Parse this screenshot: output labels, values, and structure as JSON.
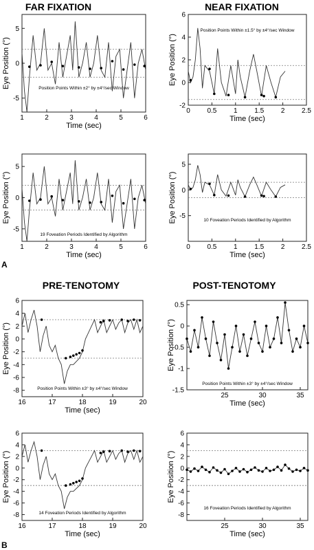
{
  "section_labels": {
    "a": "A",
    "b": "B"
  },
  "headers": {
    "far": "FAR FIXATION",
    "near": "NEAR FIXATION",
    "pre": "PRE-TENOTOMY",
    "post": "POST-TENOTOMY"
  },
  "chart_data": [
    {
      "id": "far_points",
      "type": "line",
      "title": "FAR FIXATION",
      "xlabel": "Time (sec)",
      "ylabel": "Eye Position (°)",
      "xlim": [
        1,
        6
      ],
      "ylim": [
        -7,
        7
      ],
      "xticks": [
        1,
        2,
        3,
        4,
        5,
        6
      ],
      "yticks": [
        -5,
        0,
        5
      ],
      "annotation": "Position Points Within ±2° by ±4°/sec Window",
      "threshold_lines": [
        2,
        -2
      ],
      "series": [
        {
          "x": [
            1.0,
            1.1,
            1.2,
            1.3,
            1.45,
            1.6,
            1.75,
            1.9,
            2.05,
            2.2,
            2.35,
            2.5,
            2.65,
            2.8,
            2.95,
            3.05,
            3.15,
            3.3,
            3.45,
            3.6,
            3.75,
            3.9,
            4.05,
            4.2,
            4.35,
            4.5,
            4.65,
            4.8,
            4.95,
            5.1,
            5.25,
            5.4,
            5.55,
            5.7,
            5.85,
            6.0
          ],
          "y": [
            1.5,
            -4,
            -7,
            -2,
            4,
            -1,
            0,
            5,
            -1,
            0,
            -3,
            3,
            -2,
            1,
            4,
            -1,
            6,
            -2,
            0,
            3,
            -2,
            0,
            4,
            -1,
            -2,
            3,
            -4,
            1,
            2,
            -5,
            -1,
            3,
            -5,
            0,
            2,
            -1
          ]
        }
      ],
      "highlight": {
        "x": [
          1.3,
          1.75,
          2.2,
          2.65,
          3.3,
          3.75,
          4.2,
          4.65,
          5.1,
          5.55,
          5.95
        ],
        "y": [
          -0.5,
          -0.3,
          0.2,
          -0.4,
          -0.6,
          -0.8,
          -0.7,
          0.3,
          -0.9,
          -0.2,
          -0.4
        ]
      }
    },
    {
      "id": "near_points",
      "type": "line",
      "title": "NEAR FIXATION",
      "xlabel": "Time (sec)",
      "ylabel": "Eye Position (°)",
      "xlim": [
        0,
        2.5
      ],
      "ylim": [
        -2,
        6
      ],
      "xticks": [
        0,
        0.5,
        1,
        1.5,
        2,
        2.5
      ],
      "yticks": [
        -2,
        0,
        2,
        4,
        6
      ],
      "annotation": "Position Points Within ±1.5° by ±4°/sec Window",
      "threshold_lines": [
        1.5,
        -1.5
      ],
      "series": [
        {
          "x": [
            0.0,
            0.05,
            0.1,
            0.15,
            0.2,
            0.25,
            0.3,
            0.35,
            0.45,
            0.55,
            0.62,
            0.7,
            0.8,
            0.9,
            1.0,
            1.05,
            1.1,
            1.2,
            1.3,
            1.38,
            1.45,
            1.55,
            1.65,
            1.75,
            1.85,
            1.95,
            2.05
          ],
          "y": [
            1,
            0,
            0.5,
            2,
            4.8,
            3,
            -0.5,
            1.5,
            1,
            -1,
            3,
            0,
            -1.2,
            1.5,
            -1,
            2,
            0.5,
            -1.3,
            1,
            2.5,
            1,
            -1.2,
            1.5,
            0,
            -1.3,
            0.5,
            1
          ]
        }
      ],
      "highlight": {
        "x": [
          0.05,
          0.45,
          0.55,
          0.85,
          1.2,
          1.55,
          1.6,
          1.85
        ],
        "y": [
          0.2,
          1.2,
          -1.0,
          -1.1,
          -1.3,
          -1.1,
          -1.2,
          -1.3
        ]
      }
    },
    {
      "id": "far_periods",
      "type": "line",
      "xlabel": "Time (sec)",
      "ylabel": "Eye Position (°)",
      "xlim": [
        1,
        6
      ],
      "ylim": [
        -7,
        7
      ],
      "xticks": [
        1,
        2,
        3,
        4,
        5,
        6
      ],
      "yticks": [
        -5,
        0,
        5
      ],
      "annotation": "19 Foveation Periods Identified by Algorithm",
      "threshold_lines": [
        2,
        -2
      ],
      "series": [
        {
          "x": [
            1.0,
            1.1,
            1.2,
            1.3,
            1.45,
            1.6,
            1.75,
            1.9,
            2.05,
            2.2,
            2.35,
            2.5,
            2.65,
            2.8,
            2.95,
            3.05,
            3.15,
            3.3,
            3.45,
            3.6,
            3.75,
            3.9,
            4.05,
            4.2,
            4.35,
            4.5,
            4.65,
            4.8,
            4.95,
            5.1,
            5.25,
            5.4,
            5.55,
            5.7,
            5.85,
            6.0
          ],
          "y": [
            1.5,
            -4,
            -7,
            -2,
            4,
            -1,
            0,
            5,
            -1,
            0,
            -3,
            3,
            -2,
            1,
            4,
            -1,
            6,
            -2,
            0,
            3,
            -2,
            0,
            4,
            -1,
            -2,
            3,
            -4,
            1,
            2,
            -5,
            -1,
            3,
            -5,
            0,
            2,
            -1
          ]
        }
      ],
      "highlight": {
        "x": [
          1.3,
          1.75,
          2.2,
          2.65,
          3.3,
          3.75,
          4.2,
          4.65,
          5.1,
          5.55,
          5.95
        ],
        "y": [
          -0.5,
          -0.3,
          0.2,
          -0.4,
          -0.6,
          -0.8,
          -0.7,
          0.3,
          -0.9,
          -0.2,
          -0.4
        ]
      }
    },
    {
      "id": "near_periods",
      "type": "line",
      "xlabel": "Time (sec)",
      "ylabel": "Eye Position (°)",
      "xlim": [
        0,
        2.5
      ],
      "ylim": [
        -10,
        7
      ],
      "xticks": [
        0,
        0.5,
        1,
        1.5,
        2,
        2.5
      ],
      "yticks": [
        -5,
        0,
        5
      ],
      "annotation": "10 Foveation Periods Identified by Algorithm",
      "threshold_lines": [
        1.5,
        -1.5
      ],
      "series": [
        {
          "x": [
            0.0,
            0.05,
            0.1,
            0.15,
            0.2,
            0.25,
            0.3,
            0.35,
            0.45,
            0.55,
            0.62,
            0.7,
            0.8,
            0.9,
            1.0,
            1.05,
            1.1,
            1.2,
            1.3,
            1.38,
            1.45,
            1.55,
            1.65,
            1.75,
            1.85,
            1.95,
            2.05
          ],
          "y": [
            1,
            0,
            0.5,
            2,
            4.8,
            3,
            -0.5,
            1.5,
            1,
            -1,
            3,
            0,
            -1.2,
            1.5,
            -1,
            2,
            0.5,
            -1.3,
            1,
            2.5,
            1,
            -1.2,
            1.5,
            0,
            -1.3,
            0.5,
            1
          ]
        }
      ],
      "highlight": {
        "x": [
          0.05,
          0.45,
          0.55,
          0.85,
          1.2,
          1.55,
          1.6,
          1.85
        ],
        "y": [
          0.2,
          1.2,
          -1.0,
          -1.1,
          -1.3,
          -1.1,
          -1.2,
          -1.3
        ]
      }
    },
    {
      "id": "pre_points",
      "type": "line",
      "title": "PRE-TENOTOMY",
      "xlabel": "Time (sec)",
      "ylabel": "Eye Position (°)",
      "xlim": [
        16,
        20
      ],
      "ylim": [
        -9,
        6
      ],
      "xticks": [
        16,
        17,
        18,
        19,
        20
      ],
      "yticks": [
        -8,
        -6,
        -4,
        -2,
        0,
        2,
        4,
        6
      ],
      "annotation": "Position Points Within ±3° by ±4°/sec Window",
      "threshold_lines": [
        3,
        -3
      ],
      "series": [
        {
          "x": [
            16.0,
            16.1,
            16.2,
            16.3,
            16.4,
            16.5,
            16.6,
            16.7,
            16.8,
            16.9,
            17.0,
            17.1,
            17.2,
            17.3,
            17.4,
            17.5,
            17.6,
            17.7,
            17.8,
            17.9,
            18.0,
            18.1,
            18.2,
            18.3,
            18.4,
            18.5,
            18.6,
            18.7,
            18.8,
            18.9,
            19.0,
            19.1,
            19.2,
            19.3,
            19.4,
            19.5,
            19.6,
            19.7,
            19.8,
            19.9,
            20.0
          ],
          "y": [
            2,
            4,
            1,
            3,
            4.5,
            2,
            -2,
            0.5,
            2,
            -1,
            -2,
            -1,
            -3,
            -4,
            -7,
            -5,
            -4,
            -4,
            -3.5,
            -3,
            -2,
            0,
            1,
            2,
            3,
            1,
            2,
            3,
            1,
            2,
            3,
            1.5,
            2.5,
            3,
            1,
            2.5,
            3,
            1.5,
            3,
            1,
            2
          ]
        }
      ],
      "highlight": {
        "x": [
          16.65,
          17.45,
          17.6,
          17.7,
          17.8,
          17.9,
          18.0,
          18.6,
          18.7,
          18.9,
          19.3,
          19.5,
          19.7,
          19.9
        ],
        "y": [
          3.0,
          -3.0,
          -2.8,
          -2.6,
          -2.4,
          -2.2,
          -1.8,
          2.6,
          2.8,
          2.9,
          3.0,
          2.8,
          3.0,
          2.9
        ]
      }
    },
    {
      "id": "post_points",
      "type": "line",
      "title": "POST-TENOTOMY",
      "xlabel": "Time (sec)",
      "ylabel": "Eye Position (°)",
      "xlim": [
        20,
        36
      ],
      "ylim": [
        -1.5,
        0.6
      ],
      "xticks": [
        25,
        30,
        35
      ],
      "yticks": [
        -1.5,
        -1,
        -0.5,
        0,
        0.5
      ],
      "annotation": "Position Points Within ±3° by ±4°/sec Window",
      "threshold_lines": [],
      "series": [
        {
          "x": [
            20.0,
            20.5,
            21.0,
            21.5,
            22.0,
            22.5,
            23.0,
            23.5,
            24.0,
            24.5,
            25.0,
            25.5,
            26.0,
            26.5,
            27.0,
            27.5,
            28.0,
            28.5,
            29.0,
            29.5,
            30.0,
            30.5,
            31.0,
            31.5,
            32.0,
            32.5,
            33.0,
            33.5,
            34.0,
            34.5,
            35.0,
            35.5,
            36.0
          ],
          "y": [
            -0.3,
            -0.6,
            -0.1,
            -0.5,
            0.2,
            -0.3,
            -0.7,
            0.1,
            -0.4,
            -0.8,
            -0.2,
            -1.0,
            -0.5,
            0.0,
            -0.6,
            -0.2,
            -0.7,
            -0.3,
            0.1,
            -0.4,
            -0.6,
            0.0,
            -0.5,
            -0.3,
            0.2,
            -0.4,
            0.55,
            -0.1,
            -0.6,
            -0.3,
            -0.5,
            0.0,
            -0.4
          ]
        }
      ],
      "highlight": {
        "x": [
          20.0,
          20.5,
          21.0,
          21.5,
          22.0,
          22.5,
          23.0,
          23.5,
          24.0,
          24.5,
          25.0,
          25.5,
          26.0,
          26.5,
          27.0,
          27.5,
          28.0,
          28.5,
          29.0,
          29.5,
          30.0,
          30.5,
          31.0,
          31.5,
          32.0,
          32.5,
          33.0,
          33.5,
          34.0,
          34.5,
          35.0,
          35.5,
          36.0
        ],
        "y": [
          -0.3,
          -0.6,
          -0.1,
          -0.5,
          0.2,
          -0.3,
          -0.7,
          0.1,
          -0.4,
          -0.8,
          -0.2,
          -1.0,
          -0.5,
          0.0,
          -0.6,
          -0.2,
          -0.7,
          -0.3,
          0.1,
          -0.4,
          -0.6,
          0.0,
          -0.5,
          -0.3,
          0.2,
          -0.4,
          0.55,
          -0.1,
          -0.6,
          -0.3,
          -0.5,
          0.0,
          -0.4
        ]
      }
    },
    {
      "id": "pre_periods",
      "type": "line",
      "xlabel": "Time (sec)",
      "ylabel": "Eye Position (°)",
      "xlim": [
        16,
        20
      ],
      "ylim": [
        -9,
        6
      ],
      "xticks": [
        16,
        17,
        18,
        19,
        20
      ],
      "yticks": [
        -8,
        -6,
        -4,
        -2,
        0,
        2,
        4,
        6
      ],
      "annotation": "14 Foveation Periods Identified by Algorithm",
      "threshold_lines": [
        3,
        -3
      ],
      "series": [
        {
          "x": [
            16.0,
            16.1,
            16.2,
            16.3,
            16.4,
            16.5,
            16.6,
            16.7,
            16.8,
            16.9,
            17.0,
            17.1,
            17.2,
            17.3,
            17.4,
            17.5,
            17.6,
            17.7,
            17.8,
            17.9,
            18.0,
            18.1,
            18.2,
            18.3,
            18.4,
            18.5,
            18.6,
            18.7,
            18.8,
            18.9,
            19.0,
            19.1,
            19.2,
            19.3,
            19.4,
            19.5,
            19.6,
            19.7,
            19.8,
            19.9,
            20.0
          ],
          "y": [
            2,
            4,
            1,
            3,
            4.5,
            2,
            -2,
            0.5,
            2,
            -1,
            -2,
            -1,
            -3,
            -4,
            -7,
            -5,
            -4,
            -4,
            -3.5,
            -3,
            -2,
            0,
            1,
            2,
            3,
            1,
            2,
            3,
            1,
            2,
            3,
            1.5,
            2.5,
            3,
            1,
            2.5,
            3,
            1.5,
            3,
            1,
            2
          ]
        }
      ],
      "highlight": {
        "x": [
          16.65,
          17.45,
          17.6,
          17.7,
          17.8,
          17.9,
          18.0,
          18.6,
          18.7,
          18.9,
          19.3,
          19.5,
          19.7,
          19.9
        ],
        "y": [
          3.0,
          -3.0,
          -2.8,
          -2.6,
          -2.4,
          -2.2,
          -1.8,
          2.6,
          2.8,
          2.9,
          3.0,
          2.8,
          3.0,
          2.9
        ]
      }
    },
    {
      "id": "post_periods",
      "type": "line",
      "xlabel": "Time (sec)",
      "ylabel": "Eye Position (°)",
      "xlim": [
        20,
        36
      ],
      "ylim": [
        -9,
        6
      ],
      "xticks": [
        25,
        30,
        35
      ],
      "yticks": [
        -8,
        -6,
        -4,
        -2,
        0,
        2,
        4,
        6
      ],
      "annotation": "16 Foveation Periods Identified by Algorithm",
      "threshold_lines": [
        3,
        -3
      ],
      "series": [
        {
          "x": [
            20.0,
            20.5,
            21.0,
            21.5,
            22.0,
            22.5,
            23.0,
            23.5,
            24.0,
            24.5,
            25.0,
            25.5,
            26.0,
            26.5,
            27.0,
            27.5,
            28.0,
            28.5,
            29.0,
            29.5,
            30.0,
            30.5,
            31.0,
            31.5,
            32.0,
            32.5,
            33.0,
            33.5,
            34.0,
            34.5,
            35.0,
            35.5,
            36.0
          ],
          "y": [
            -0.3,
            -0.6,
            -0.1,
            -0.5,
            0.2,
            -0.3,
            -0.7,
            0.1,
            -0.4,
            -0.8,
            -0.2,
            -1.0,
            -0.5,
            0.0,
            -0.6,
            -0.2,
            -0.7,
            -0.3,
            0.1,
            -0.4,
            -0.6,
            0.0,
            -0.5,
            -0.3,
            0.2,
            -0.4,
            0.55,
            -0.1,
            -0.6,
            -0.3,
            -0.5,
            0.0,
            -0.4
          ]
        }
      ],
      "highlight": {
        "x": [
          20.0,
          20.5,
          21.0,
          21.5,
          22.0,
          22.5,
          23.0,
          23.5,
          24.0,
          24.5,
          25.0,
          25.5,
          26.0,
          26.5,
          27.0,
          27.5,
          28.0,
          28.5,
          29.0,
          29.5,
          30.0,
          30.5,
          31.0,
          31.5,
          32.0,
          32.5,
          33.0,
          33.5,
          34.0,
          34.5,
          35.0,
          35.5,
          36.0
        ],
        "y": [
          -0.3,
          -0.6,
          -0.1,
          -0.5,
          0.2,
          -0.3,
          -0.7,
          0.1,
          -0.4,
          -0.8,
          -0.2,
          -1.0,
          -0.5,
          0.0,
          -0.6,
          -0.2,
          -0.7,
          -0.3,
          0.1,
          -0.4,
          -0.6,
          0.0,
          -0.5,
          -0.3,
          0.2,
          -0.4,
          0.55,
          -0.1,
          -0.6,
          -0.3,
          -0.5,
          0.0,
          -0.4
        ]
      }
    }
  ]
}
